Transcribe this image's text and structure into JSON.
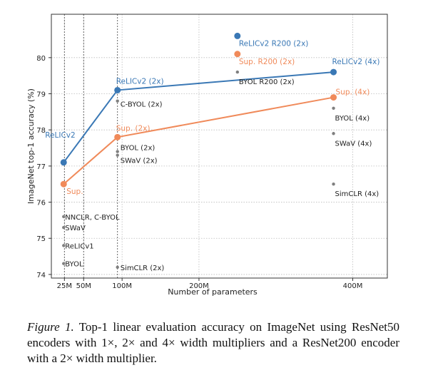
{
  "chart_data": {
    "type": "scatter",
    "xlabel": "Number of parameters",
    "ylabel": "ImageNet top-1 accuracy (%)",
    "xlim": [
      8,
      445
    ],
    "ylim": [
      73.9,
      81.2
    ],
    "x_ticks": [
      {
        "value": 25,
        "label": "25M"
      },
      {
        "value": 50,
        "label": "50M"
      },
      {
        "value": 100,
        "label": "100M"
      },
      {
        "value": 200,
        "label": "200M"
      },
      {
        "value": 400,
        "label": "400M"
      }
    ],
    "y_ticks": [
      74,
      75,
      76,
      77,
      78,
      79,
      80
    ],
    "vertical_dotted_lines": [
      25,
      50,
      94
    ],
    "grid": "dotted horizontal and vertical",
    "series": [
      {
        "name": "ReLICv2",
        "color": "#3a78b5",
        "points": [
          [
            24,
            77.1
          ],
          [
            94,
            79.1
          ],
          [
            375,
            79.6
          ]
        ],
        "point_labels": [
          "ReLICv2",
          "ReLICv2 (2x)",
          "ReLICv2 (4x)"
        ],
        "extra_points": [
          [
            250,
            80.6
          ]
        ],
        "extra_labels": [
          "ReLICv2 R200 (2x)"
        ]
      },
      {
        "name": "Sup.",
        "color": "#f08a5a",
        "points": [
          [
            24,
            76.5
          ],
          [
            94,
            77.8
          ],
          [
            375,
            78.9
          ]
        ],
        "point_labels": [
          "Sup.",
          "Sup. (2x)",
          "Sup. (4x)"
        ],
        "extra_points": [
          [
            250,
            80.1
          ]
        ],
        "extra_labels": [
          "Sup. R200 (2x)"
        ]
      }
    ],
    "other_points": [
      {
        "label": "BYOL R200 (2x)",
        "x": 250,
        "y": 79.6
      },
      {
        "label": "C-BYOL (2x)",
        "x": 94,
        "y": 78.8
      },
      {
        "label": "BYOL (2x)",
        "x": 94,
        "y": 77.4
      },
      {
        "label": "SWaV (2x)",
        "x": 94,
        "y": 77.3
      },
      {
        "label": "SimCLR (2x)",
        "x": 94,
        "y": 74.2
      },
      {
        "label": "BYOL (4x)",
        "x": 375,
        "y": 78.6
      },
      {
        "label": "SWaV (4x)",
        "x": 375,
        "y": 77.9
      },
      {
        "label": "SimCLR (4x)",
        "x": 375,
        "y": 76.5
      },
      {
        "label": "NNCLR,  C-BYOL",
        "x": 24,
        "y": 75.6
      },
      {
        "label": "SWaV",
        "x": 24,
        "y": 75.3
      },
      {
        "label": "ReLICv1",
        "x": 24,
        "y": 74.8
      },
      {
        "label": "BYOL",
        "x": 24,
        "y": 74.3
      }
    ],
    "other_color": "#7f7f7f"
  },
  "caption": {
    "label": "Figure 1.",
    "text": " Top-1 linear evaluation accuracy on ImageNet using ResNet50 encoders with 1×, 2× and 4× width multipliers and a ResNet200 encoder with a 2× width multiplier."
  }
}
